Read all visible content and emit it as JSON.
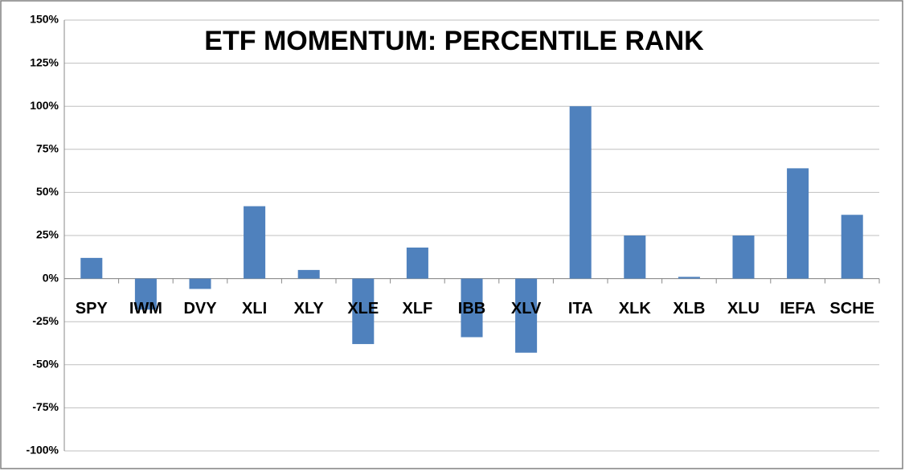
{
  "chart_data": {
    "type": "bar",
    "title": "ETF MOMENTUM: PERCENTILE RANK",
    "categories": [
      "SPY",
      "IWM",
      "DVY",
      "XLI",
      "XLY",
      "XLE",
      "XLF",
      "IBB",
      "XLV",
      "ITA",
      "XLK",
      "XLB",
      "XLU",
      "IEFA",
      "SCHE"
    ],
    "values": [
      12,
      -18,
      -6,
      42,
      5,
      -38,
      18,
      -34,
      -43,
      100,
      25,
      1,
      25,
      64,
      37
    ],
    "color": "#4f81bd",
    "ylim": [
      -100,
      150
    ],
    "yticks": [
      {
        "value": -100,
        "label": "-100%"
      },
      {
        "value": -75,
        "label": "-75%"
      },
      {
        "value": -50,
        "label": "-50%"
      },
      {
        "value": -25,
        "label": "-25%"
      },
      {
        "value": 0,
        "label": "0%"
      },
      {
        "value": 25,
        "label": "25%"
      },
      {
        "value": 50,
        "label": "50%"
      },
      {
        "value": 75,
        "label": "75%"
      },
      {
        "value": 100,
        "label": "100%"
      },
      {
        "value": 125,
        "label": "125%"
      },
      {
        "value": 150,
        "label": "150%"
      }
    ],
    "grid": true
  }
}
